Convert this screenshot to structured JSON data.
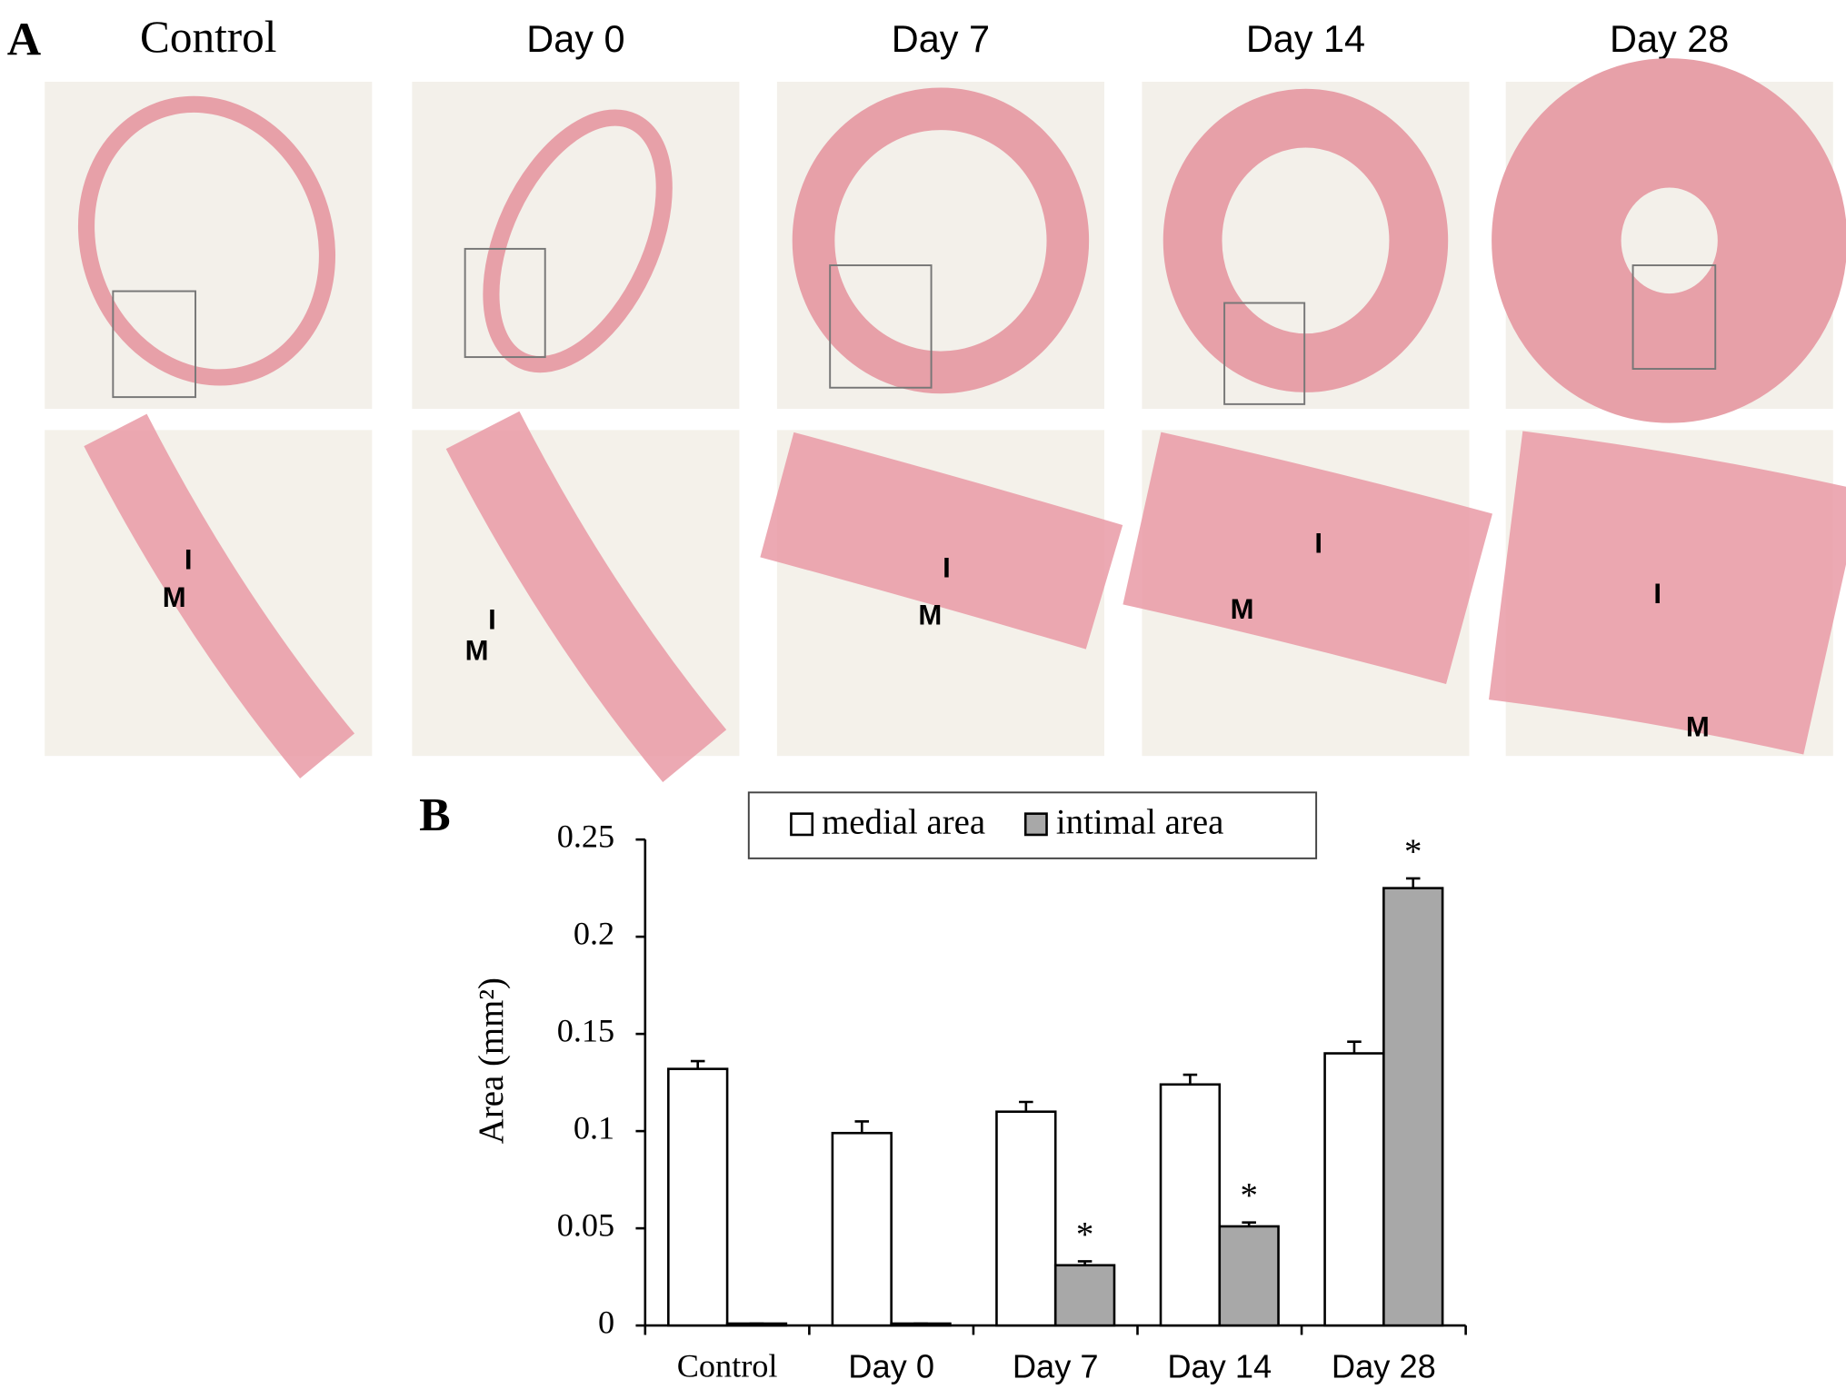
{
  "panel_a": {
    "label": "A",
    "columns": [
      {
        "title": "Control",
        "zoom_labels": [
          "I",
          "M"
        ]
      },
      {
        "title": "Day 0",
        "zoom_labels": [
          "I",
          "M"
        ]
      },
      {
        "title": "Day 7",
        "zoom_labels": [
          "I",
          "M"
        ]
      },
      {
        "title": "Day 14",
        "zoom_labels": [
          "I",
          "M"
        ]
      },
      {
        "title": "Day 28",
        "zoom_labels": [
          "I",
          "M"
        ]
      }
    ]
  },
  "chart_data": {
    "type": "bar",
    "label": "B",
    "y_label": "Area (mm²)",
    "categories": [
      "Control",
      "Day 0",
      "Day 7",
      "Day 14",
      "Day 28"
    ],
    "series": [
      {
        "name": "medial area",
        "color": "#ffffff",
        "values": [
          0.132,
          0.099,
          0.11,
          0.124,
          0.14
        ],
        "errors": [
          0.004,
          0.006,
          0.005,
          0.005,
          0.006
        ]
      },
      {
        "name": "intimal area",
        "color": "#a8a8a8",
        "values": [
          0.001,
          0.001,
          0.031,
          0.051,
          0.225
        ],
        "errors": [
          0,
          0,
          0.002,
          0.002,
          0.005
        ],
        "annotations": [
          null,
          null,
          "*",
          "*",
          "*"
        ]
      }
    ],
    "ylim": [
      0,
      0.25
    ],
    "yticks": [
      0,
      0.05,
      0.1,
      0.15,
      0.2,
      0.25
    ],
    "legend": "top"
  }
}
